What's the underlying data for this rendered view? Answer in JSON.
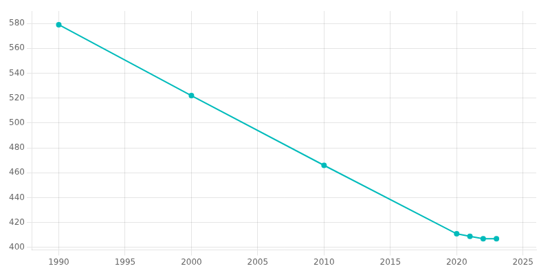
{
  "chart_data": {
    "type": "line",
    "x": [
      1990,
      2000,
      2010,
      2020,
      2021,
      2022,
      2023
    ],
    "values": [
      579,
      522,
      466,
      411,
      409,
      407,
      407
    ],
    "color": "#00BBBB",
    "marker": "circle",
    "xlim": [
      1988,
      2026
    ],
    "ylim": [
      398,
      590
    ],
    "xticks": [
      1990,
      1995,
      2000,
      2005,
      2010,
      2015,
      2020,
      2025
    ],
    "yticks": [
      400,
      420,
      440,
      460,
      480,
      500,
      520,
      540,
      560,
      580
    ],
    "grid": true
  }
}
